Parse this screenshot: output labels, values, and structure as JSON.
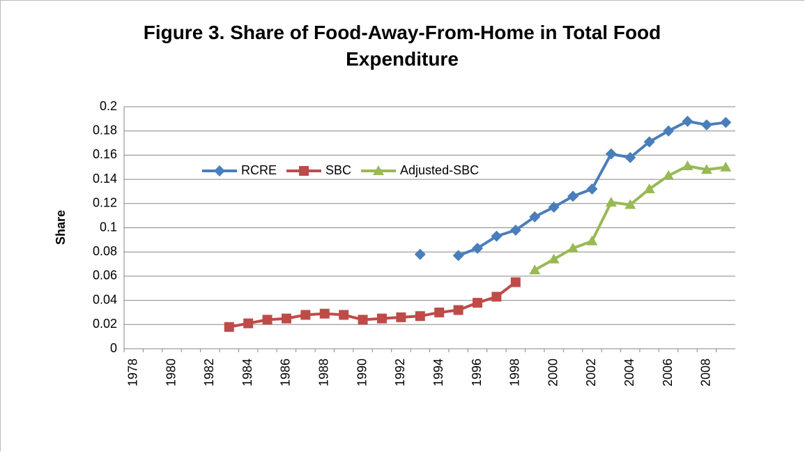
{
  "chart_data": {
    "type": "line",
    "title": "Figure 3. Share of Food-Away-From-Home in Total Food Expenditure",
    "y_label": "Share",
    "categories": [
      "1978",
      null,
      "1980",
      null,
      "1982",
      null,
      "1984",
      null,
      "1986",
      null,
      "1988",
      null,
      "1990",
      null,
      "1992",
      null,
      "1994",
      null,
      "1996",
      null,
      "1998",
      null,
      "2000",
      null,
      "2002",
      null,
      "2004",
      null,
      "2006",
      null,
      "2008",
      null
    ],
    "series": [
      {
        "name": "RCRE",
        "color": "#4a7ebb",
        "marker": "diamond",
        "values": [
          null,
          null,
          null,
          null,
          null,
          null,
          null,
          null,
          null,
          null,
          null,
          null,
          null,
          null,
          null,
          0.078,
          null,
          0.077,
          0.083,
          0.093,
          0.098,
          0.109,
          0.117,
          0.126,
          0.132,
          0.161,
          0.158,
          0.171,
          0.18,
          0.188,
          0.185,
          0.187
        ]
      },
      {
        "name": "SBC",
        "color": "#be4b48",
        "marker": "square",
        "values": [
          null,
          null,
          null,
          null,
          null,
          0.018,
          0.021,
          0.024,
          0.025,
          0.028,
          0.029,
          0.028,
          0.024,
          0.025,
          0.026,
          0.027,
          0.03,
          0.032,
          0.038,
          0.043,
          0.055,
          null,
          null,
          null,
          null,
          null,
          null,
          null,
          null,
          null,
          null,
          null
        ]
      },
      {
        "name": "Adjusted-SBC",
        "color": "#98b954",
        "marker": "triangle",
        "values": [
          null,
          null,
          null,
          null,
          null,
          null,
          null,
          null,
          null,
          null,
          null,
          null,
          null,
          null,
          null,
          null,
          null,
          null,
          null,
          null,
          null,
          0.065,
          0.074,
          0.083,
          0.089,
          0.121,
          0.119,
          0.132,
          0.143,
          0.151,
          0.148,
          0.15
        ]
      }
    ],
    "ylim": [
      0,
      0.2
    ],
    "yticks": [
      0,
      0.02,
      0.04,
      0.06,
      0.08,
      0.1,
      0.12,
      0.14,
      0.16,
      0.18,
      0.2
    ],
    "grid": true
  }
}
